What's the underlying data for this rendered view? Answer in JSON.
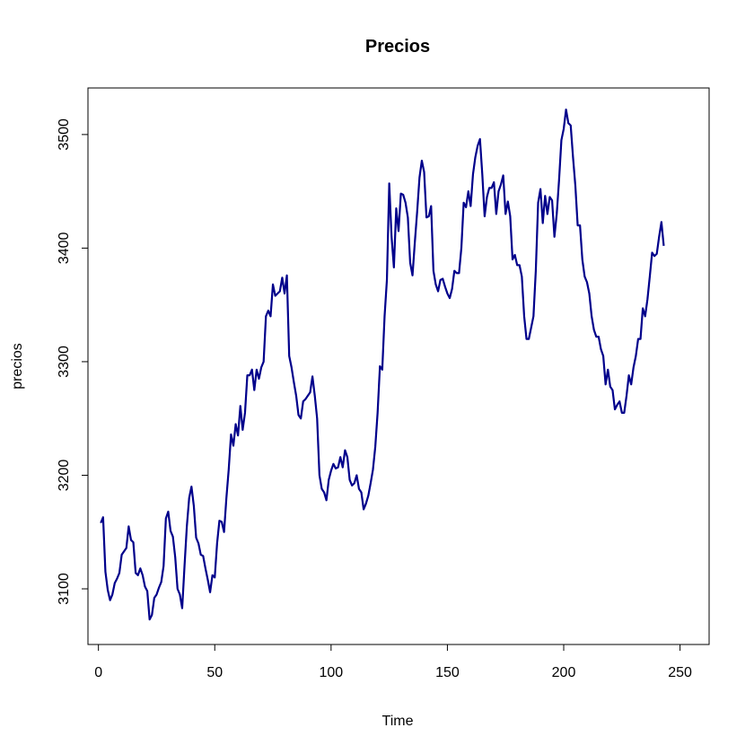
{
  "chart_data": {
    "type": "line",
    "title": "Precios",
    "xlabel": "Time",
    "ylabel": "precios",
    "xlim": [
      -4.5,
      262.5
    ],
    "ylim": [
      3051,
      3541
    ],
    "x_ticks": [
      0,
      50,
      100,
      150,
      200,
      250
    ],
    "y_ticks": [
      3100,
      3200,
      3300,
      3400,
      3500
    ],
    "grid": false,
    "line_color": "#00008B",
    "series": [
      {
        "x_start": 1,
        "values": [
          3158,
          3163,
          3115,
          3099,
          3090,
          3095,
          3105,
          3109,
          3114,
          3130,
          3133,
          3136,
          3155,
          3143,
          3141,
          3114,
          3112,
          3118,
          3112,
          3102,
          3098,
          3073,
          3077,
          3092,
          3095,
          3101,
          3106,
          3120,
          3162,
          3168,
          3151,
          3146,
          3128,
          3100,
          3095,
          3083,
          3120,
          3155,
          3180,
          3190,
          3173,
          3145,
          3140,
          3130,
          3129,
          3118,
          3108,
          3097,
          3112,
          3110,
          3140,
          3160,
          3159,
          3150,
          3180,
          3205,
          3236,
          3226,
          3245,
          3235,
          3261,
          3240,
          3255,
          3288,
          3288,
          3293,
          3275,
          3293,
          3285,
          3295,
          3300,
          3340,
          3345,
          3340,
          3368,
          3358,
          3360,
          3362,
          3374,
          3360,
          3376,
          3305,
          3295,
          3282,
          3270,
          3253,
          3250,
          3265,
          3267,
          3270,
          3273,
          3287,
          3270,
          3250,
          3200,
          3188,
          3185,
          3178,
          3196,
          3204,
          3210,
          3206,
          3207,
          3216,
          3207,
          3222,
          3216,
          3196,
          3191,
          3193,
          3200,
          3188,
          3185,
          3170,
          3175,
          3182,
          3193,
          3205,
          3225,
          3255,
          3296,
          3293,
          3340,
          3372,
          3457,
          3410,
          3383,
          3435,
          3415,
          3448,
          3447,
          3440,
          3427,
          3387,
          3376,
          3405,
          3432,
          3462,
          3477,
          3467,
          3427,
          3428,
          3437,
          3380,
          3368,
          3362,
          3372,
          3373,
          3366,
          3360,
          3356,
          3364,
          3380,
          3378,
          3378,
          3400,
          3440,
          3436,
          3450,
          3437,
          3465,
          3480,
          3490,
          3496,
          3465,
          3428,
          3445,
          3453,
          3453,
          3458,
          3430,
          3450,
          3456,
          3464,
          3430,
          3441,
          3428,
          3390,
          3394,
          3385,
          3385,
          3375,
          3340,
          3320,
          3320,
          3330,
          3340,
          3380,
          3440,
          3452,
          3422,
          3446,
          3430,
          3445,
          3442,
          3410,
          3430,
          3460,
          3495,
          3505,
          3522,
          3510,
          3508,
          3480,
          3455,
          3420,
          3420,
          3390,
          3375,
          3370,
          3360,
          3340,
          3328,
          3322,
          3322,
          3311,
          3305,
          3280,
          3293,
          3278,
          3275,
          3258,
          3262,
          3265,
          3255,
          3255,
          3270,
          3288,
          3280,
          3295,
          3305,
          3320,
          3320,
          3347,
          3340,
          3355,
          3375,
          3396,
          3393,
          3395,
          3410,
          3423,
          3402
        ]
      }
    ]
  }
}
